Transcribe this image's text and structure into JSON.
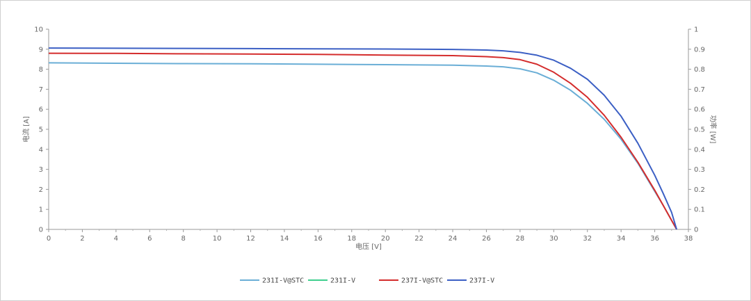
{
  "chart_data": {
    "type": "line",
    "xlabel": "电压 [V]",
    "ylabel": "电流 [A]",
    "y2label": "功率 [W]",
    "xlim": [
      0,
      38
    ],
    "ylim": [
      0,
      10
    ],
    "y2lim": [
      0,
      1
    ],
    "xticks": [
      0,
      2,
      4,
      6,
      8,
      10,
      12,
      14,
      16,
      18,
      20,
      22,
      24,
      26,
      28,
      30,
      32,
      34,
      36,
      38
    ],
    "yticks": [
      0,
      1,
      2,
      3,
      4,
      5,
      6,
      7,
      8,
      9,
      10
    ],
    "y2ticks": [
      "0",
      "0.1",
      "0.2",
      "0.3",
      "0.4",
      "0.5",
      "0.6",
      "0.7",
      "0.8",
      "0.9",
      "1"
    ],
    "grid": false,
    "legend_position": "bottom",
    "series": [
      {
        "name": "231I-V@STC",
        "color": "#6aaed6",
        "x": [
          0,
          4,
          8,
          12,
          16,
          20,
          24,
          26,
          27,
          28,
          29,
          30,
          31,
          32,
          33,
          34,
          35,
          36,
          36.5,
          37,
          37.3
        ],
        "y": [
          8.32,
          8.3,
          8.28,
          8.27,
          8.25,
          8.23,
          8.2,
          8.16,
          8.12,
          8.02,
          7.82,
          7.45,
          6.95,
          6.3,
          5.5,
          4.5,
          3.3,
          1.9,
          1.2,
          0.45,
          0
        ]
      },
      {
        "name": "231I-V",
        "color": "#3ecf8e",
        "x": [],
        "y": []
      },
      {
        "name": "237I-V@STC",
        "color": "#d42c2c",
        "x": [
          0,
          4,
          8,
          12,
          16,
          20,
          24,
          26,
          27,
          28,
          29,
          30,
          31,
          32,
          33,
          34,
          35,
          36,
          36.5,
          37,
          37.3
        ],
        "y": [
          8.8,
          8.79,
          8.77,
          8.76,
          8.74,
          8.71,
          8.68,
          8.63,
          8.58,
          8.48,
          8.25,
          7.85,
          7.3,
          6.6,
          5.7,
          4.6,
          3.35,
          1.95,
          1.2,
          0.45,
          0
        ]
      },
      {
        "name": "237I-V",
        "color": "#3b5fc4",
        "x": [
          0,
          4,
          8,
          12,
          16,
          20,
          24,
          26,
          27,
          28,
          29,
          30,
          31,
          32,
          33,
          34,
          35,
          36,
          36.5,
          37,
          37.3
        ],
        "y": [
          9.06,
          9.05,
          9.04,
          9.03,
          9.02,
          9.01,
          8.99,
          8.96,
          8.92,
          8.84,
          8.7,
          8.45,
          8.05,
          7.5,
          6.7,
          5.65,
          4.3,
          2.7,
          1.8,
          0.85,
          0
        ]
      }
    ]
  }
}
